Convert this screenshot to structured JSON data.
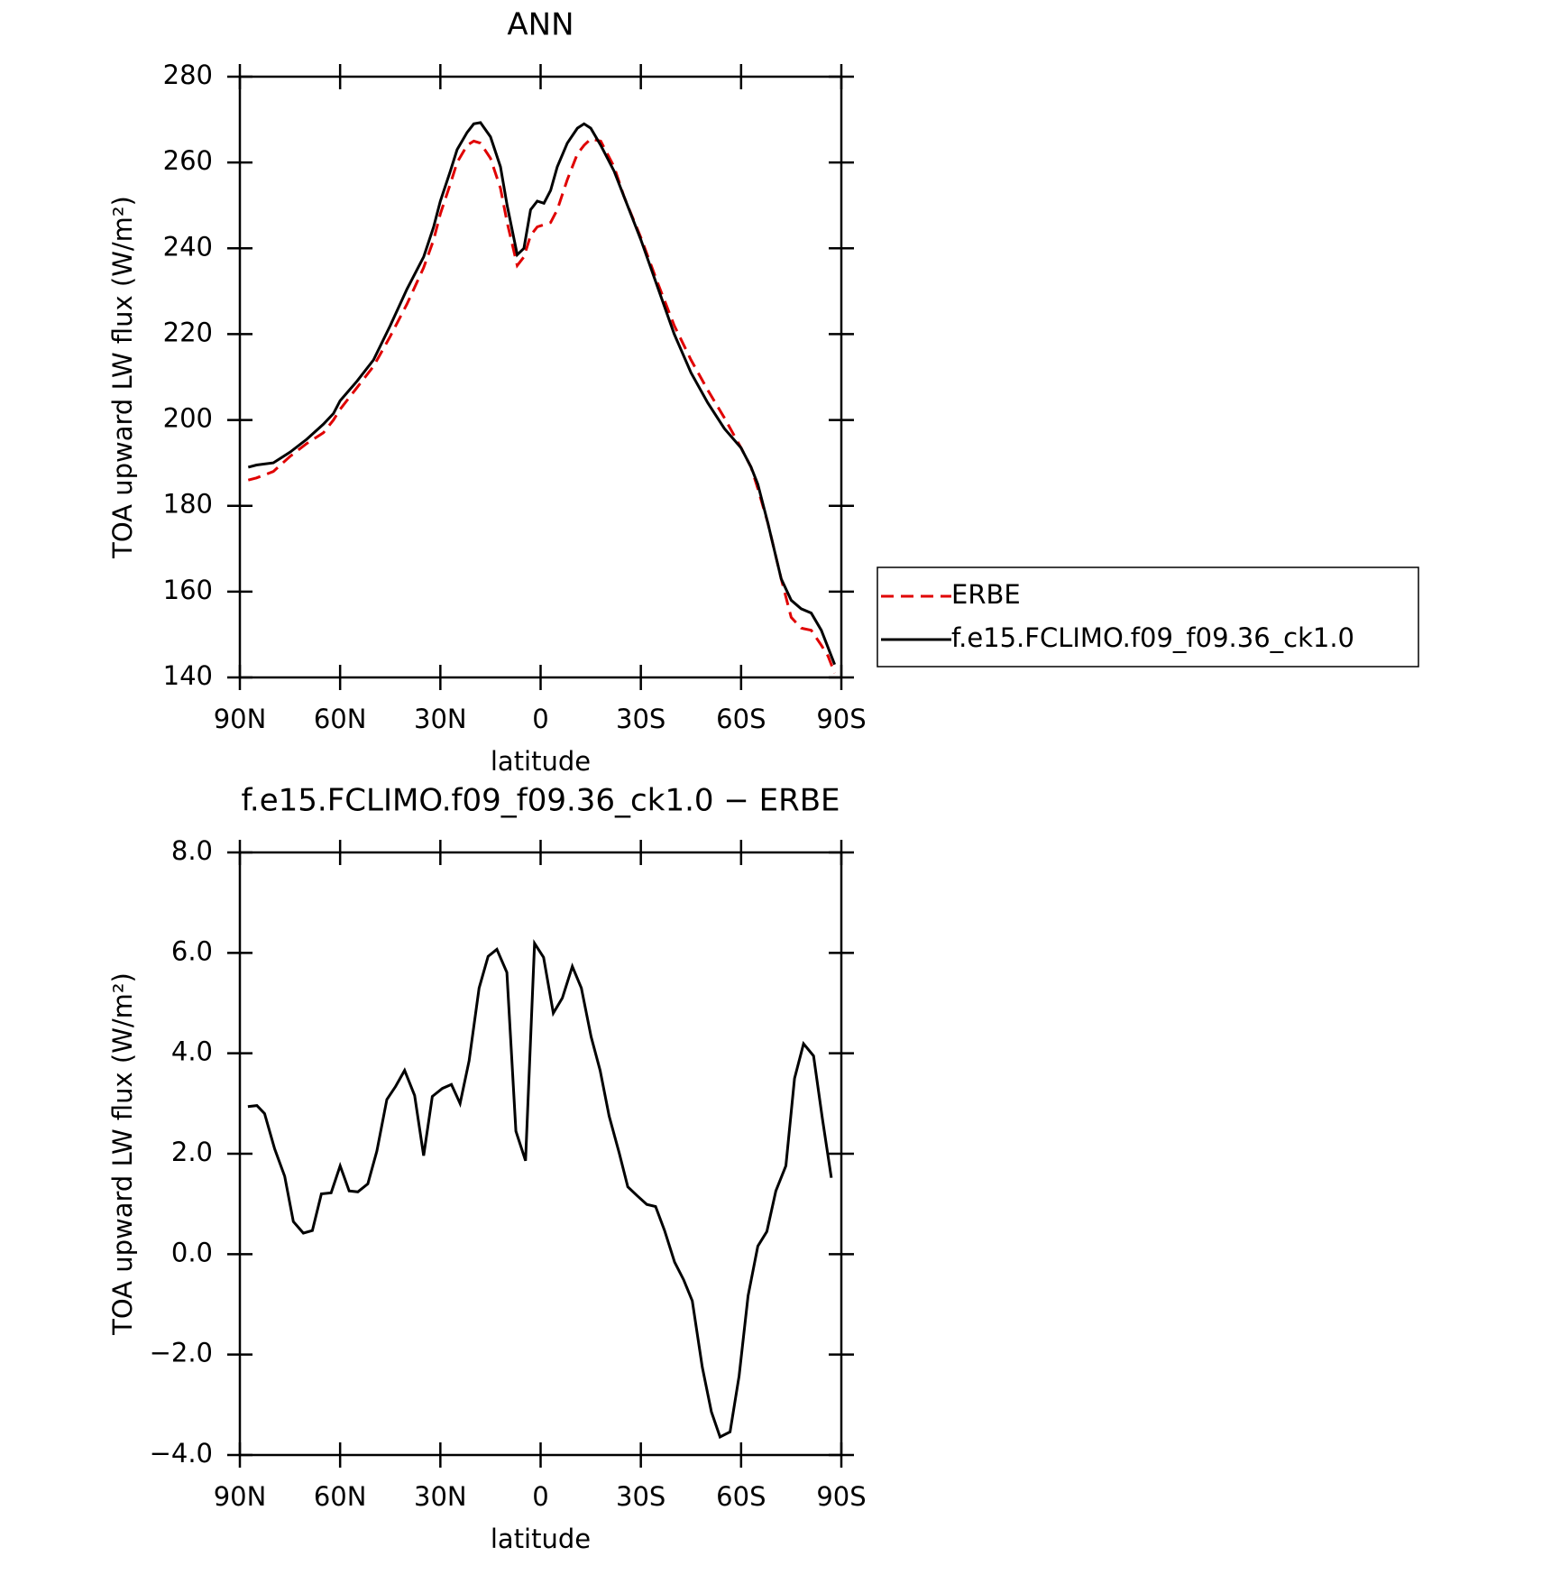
{
  "chart_data": [
    {
      "type": "line",
      "title": "ANN",
      "xlabel": "latitude",
      "ylabel": "TOA upward LW flux (W/m²)",
      "x": [
        87.5,
        85,
        80,
        75,
        70,
        65,
        62,
        60,
        55,
        50,
        45,
        40,
        35,
        32,
        30,
        27,
        25,
        22,
        20,
        18,
        15,
        12,
        10,
        7,
        5,
        3,
        1,
        -1,
        -3,
        -5,
        -8,
        -11,
        -13,
        -15,
        -18,
        -22,
        -25,
        -30,
        -35,
        -40,
        -45,
        -50,
        -55,
        -60,
        -63,
        -65,
        -68,
        -72,
        -75,
        -78,
        -81,
        -84,
        -86,
        -88
      ],
      "series": [
        {
          "name": "ERBE",
          "color": "#e00000",
          "line_style": "dashed",
          "values": [
            186,
            186.5,
            188,
            191.5,
            194.5,
            197,
            200,
            202.5,
            207.5,
            212.5,
            219.5,
            227,
            235.5,
            242,
            248,
            255,
            260,
            264,
            265,
            264.5,
            261,
            254,
            246,
            236,
            238,
            243,
            245,
            245.5,
            246,
            249,
            256,
            262,
            264,
            265.5,
            265,
            259,
            252,
            242.5,
            232,
            222,
            214,
            207,
            200.5,
            193.5,
            189,
            184,
            176,
            163,
            154,
            151.5,
            151,
            147.5,
            145,
            141
          ]
        },
        {
          "name": "f.e15.FCLIMO.f09_f09.36_ck1.0",
          "color": "#000000",
          "line_style": "solid",
          "values": [
            189,
            189.5,
            190,
            192.5,
            195.5,
            199,
            201.5,
            204.5,
            209,
            214,
            222,
            230.5,
            238,
            245,
            251,
            258,
            263,
            267,
            269,
            269.3,
            266,
            259,
            250,
            238.5,
            240,
            249,
            251,
            250.5,
            253.5,
            259,
            264.5,
            268,
            269,
            268,
            264,
            258,
            252,
            242,
            231,
            220,
            211,
            204,
            198,
            193.5,
            189,
            185,
            176,
            163,
            158,
            156,
            155,
            151,
            147,
            143
          ]
        }
      ],
      "xlim": [
        90,
        -90
      ],
      "xticks": [
        {
          "value": 90,
          "label": "90N"
        },
        {
          "value": 60,
          "label": "60N"
        },
        {
          "value": 30,
          "label": "30N"
        },
        0,
        {
          "value": -30,
          "label": "30S"
        },
        {
          "value": -60,
          "label": "60S"
        },
        {
          "value": -90,
          "label": "90S"
        }
      ],
      "ylim": [
        140,
        280
      ],
      "yticks": [
        140,
        160,
        180,
        200,
        220,
        240,
        260,
        280
      ],
      "legend": "right"
    },
    {
      "type": "line",
      "title": "f.e15.FCLIMO.f09_f09.36_ck1.0 − ERBE",
      "xlabel": "latitude",
      "ylabel": "TOA upward LW flux (W/m²)",
      "x": [
        87.6,
        84.9,
        82.6,
        79.6,
        76.6,
        74,
        71,
        68.3,
        65.6,
        62.7,
        60,
        57.3,
        54.7,
        51.7,
        49,
        46,
        43.4,
        40.7,
        37.7,
        35,
        32.4,
        29.4,
        26.7,
        24.1,
        21.4,
        18.4,
        15.7,
        13.1,
        10.1,
        7.4,
        4.5,
        1.8,
        -0.9,
        -3.8,
        -6.5,
        -9.5,
        -12.2,
        -15.1,
        -17.8,
        -20.5,
        -23.5,
        -26.1,
        -28.8,
        -31.8,
        -34.4,
        -37.1,
        -40.1,
        -42.8,
        -45.4,
        -48.4,
        -51.1,
        -53.7,
        -56.7,
        -59.4,
        -62.1,
        -65,
        -67.7,
        -70.4,
        -73.4,
        -76,
        -78.7,
        -81.7,
        -84.3,
        -87
      ],
      "values": [
        2.94,
        2.96,
        2.8,
        2.1,
        1.55,
        0.65,
        0.42,
        0.47,
        1.2,
        1.22,
        1.76,
        1.26,
        1.24,
        1.4,
        2.05,
        3.08,
        3.34,
        3.66,
        3.16,
        1.96,
        3.14,
        3.3,
        3.38,
        3.0,
        3.85,
        5.3,
        5.93,
        6.07,
        5.61,
        2.45,
        1.86,
        6.19,
        5.91,
        4.8,
        5.1,
        5.73,
        5.3,
        4.33,
        3.66,
        2.75,
        2.02,
        1.34,
        1.17,
        0.99,
        0.95,
        0.47,
        -0.16,
        -0.51,
        -0.93,
        -2.25,
        -3.14,
        -3.64,
        -3.54,
        -2.43,
        -0.83,
        0.16,
        0.45,
        1.26,
        1.76,
        3.5,
        4.19,
        3.95,
        2.71,
        1.52
      ],
      "color": "#000000",
      "line_style": "solid",
      "xlim": [
        90,
        -90
      ],
      "xticks": [
        {
          "value": 90,
          "label": "90N"
        },
        {
          "value": 60,
          "label": "60N"
        },
        {
          "value": 30,
          "label": "30N"
        },
        0,
        {
          "value": -30,
          "label": "30S"
        },
        {
          "value": -60,
          "label": "60S"
        },
        {
          "value": -90,
          "label": "90S"
        }
      ],
      "ylim": [
        -4,
        8
      ],
      "yticks": [
        {
          "value": -4,
          "label": "−4.0"
        },
        {
          "value": -2,
          "label": "−2.0"
        },
        {
          "value": 0,
          "label": "0.0"
        },
        {
          "value": 2,
          "label": "2.0"
        },
        {
          "value": 4,
          "label": "4.0"
        },
        {
          "value": 6,
          "label": "6.0"
        },
        {
          "value": 8,
          "label": "8.0"
        }
      ]
    }
  ]
}
